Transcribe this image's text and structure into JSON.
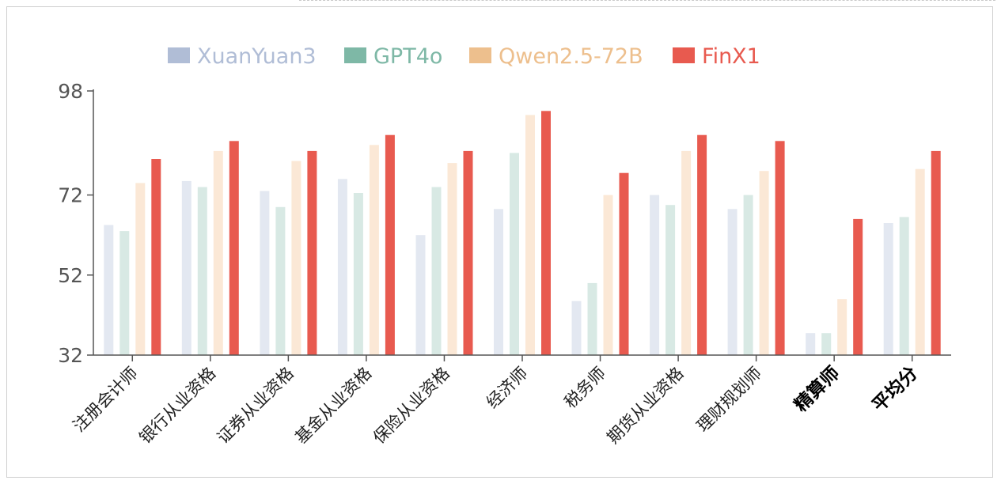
{
  "chart_data": {
    "type": "bar",
    "title": "",
    "xlabel": "",
    "ylabel": "",
    "ylim": [
      32,
      98
    ],
    "yticks": [
      32,
      52,
      72,
      98
    ],
    "legend_position": "top",
    "grid": false,
    "categories": [
      "注册会计师",
      "银行从业资格",
      "证券从业资格",
      "基金从业资格",
      "保险从业资格",
      "经济师",
      "税务师",
      "期货从业资格",
      "理财规划师",
      "精算师",
      "平均分"
    ],
    "bold_categories": [
      "精算师",
      "平均分"
    ],
    "series": [
      {
        "name": "XuanYuan3",
        "color": "#e3e8f1",
        "legend_color": "#b0bdd6",
        "values": [
          64.5,
          75.5,
          73,
          76,
          62,
          68.5,
          45.5,
          72,
          68.5,
          37.5,
          65
        ]
      },
      {
        "name": "GPT4o",
        "color": "#d8e9e4",
        "legend_color": "#7eb8a6",
        "values": [
          63,
          74,
          69,
          72.5,
          74,
          82.5,
          50,
          69.5,
          72,
          37.5,
          66.5
        ]
      },
      {
        "name": "Qwen2.5-72B",
        "color": "#fbe8d6",
        "legend_color": "#edbf8d",
        "values": [
          75,
          83,
          80.5,
          84.5,
          80,
          92,
          72,
          83,
          78,
          46,
          78.5
        ]
      },
      {
        "name": "FinX1",
        "color": "#e85a4f",
        "legend_color": "#e85a4f",
        "values": [
          81,
          85.5,
          83,
          87,
          83,
          93,
          77.5,
          87,
          85.5,
          66,
          83
        ]
      }
    ]
  }
}
